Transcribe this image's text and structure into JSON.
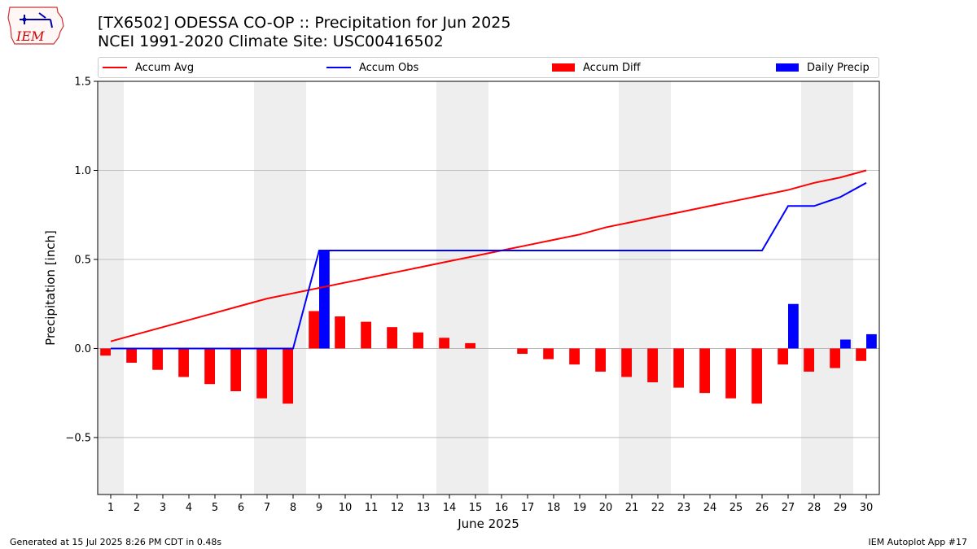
{
  "header": {
    "logo_text": "IEM",
    "title_line1": "[TX6502] ODESSA CO-OP :: Precipitation for Jun 2025",
    "title_line2": "NCEI 1991-2020 Climate Site: USC00416502"
  },
  "legend": {
    "items": [
      {
        "label": "Accum Avg",
        "kind": "line",
        "color": "#ff0000"
      },
      {
        "label": "Accum Obs",
        "kind": "line",
        "color": "#0000ff"
      },
      {
        "label": "Accum Diff",
        "kind": "box",
        "color": "#ff0000"
      },
      {
        "label": "Daily Precip",
        "kind": "box",
        "color": "#0000ff"
      }
    ]
  },
  "footer": {
    "left": "Generated at 15 Jul 2025 8:26 PM CDT in 0.48s",
    "right": "IEM Autoplot App #17"
  },
  "chart_data": {
    "type": "bar",
    "xlabel": "June 2025",
    "ylabel": "Precipitation [inch]",
    "ylim": [
      -0.82,
      1.5
    ],
    "xlim": [
      0.5,
      30.5
    ],
    "yticks": [
      -0.5,
      0.0,
      0.5,
      1.0,
      1.5
    ],
    "ytick_labels": [
      "−0.5",
      "0.0",
      "0.5",
      "1.0",
      "1.5"
    ],
    "days": [
      1,
      2,
      3,
      4,
      5,
      6,
      7,
      8,
      9,
      10,
      11,
      12,
      13,
      14,
      15,
      16,
      17,
      18,
      19,
      20,
      21,
      22,
      23,
      24,
      25,
      26,
      27,
      28,
      29,
      30
    ],
    "weekend_days": [
      1,
      7,
      8,
      14,
      15,
      21,
      22,
      28,
      29
    ],
    "grid": "horizontal",
    "colors": {
      "avg": "#ff0000",
      "obs": "#0000ff",
      "diff": "#ff0000",
      "daily": "#0000ff",
      "weekend": "#eeeeee"
    },
    "series": [
      {
        "name": "Accum Avg",
        "kind": "line",
        "values": [
          0.04,
          0.08,
          0.12,
          0.16,
          0.2,
          0.24,
          0.28,
          0.31,
          0.34,
          0.37,
          0.4,
          0.43,
          0.46,
          0.49,
          0.52,
          0.55,
          0.58,
          0.61,
          0.64,
          0.68,
          0.71,
          0.74,
          0.77,
          0.8,
          0.83,
          0.86,
          0.89,
          0.93,
          0.96,
          1.0
        ]
      },
      {
        "name": "Accum Obs",
        "kind": "line",
        "values": [
          0.0,
          0.0,
          0.0,
          0.0,
          0.0,
          0.0,
          0.0,
          0.0,
          0.55,
          0.55,
          0.55,
          0.55,
          0.55,
          0.55,
          0.55,
          0.55,
          0.55,
          0.55,
          0.55,
          0.55,
          0.55,
          0.55,
          0.55,
          0.55,
          0.55,
          0.55,
          0.8,
          0.8,
          0.85,
          0.93
        ]
      },
      {
        "name": "Accum Diff",
        "kind": "bar",
        "values": [
          -0.04,
          -0.08,
          -0.12,
          -0.16,
          -0.2,
          -0.24,
          -0.28,
          -0.31,
          0.21,
          0.18,
          0.15,
          0.12,
          0.09,
          0.06,
          0.03,
          0.0,
          -0.03,
          -0.06,
          -0.09,
          -0.13,
          -0.16,
          -0.19,
          -0.22,
          -0.25,
          -0.28,
          -0.31,
          -0.09,
          -0.13,
          -0.11,
          -0.07
        ]
      },
      {
        "name": "Daily Precip",
        "kind": "bar",
        "values": [
          0,
          0,
          0,
          0,
          0,
          0,
          0,
          0,
          0.55,
          0,
          0,
          0,
          0,
          0,
          0,
          0,
          0,
          0,
          0,
          0,
          0,
          0,
          0,
          0,
          0,
          0,
          0.25,
          0,
          0.05,
          0.08
        ]
      }
    ]
  }
}
